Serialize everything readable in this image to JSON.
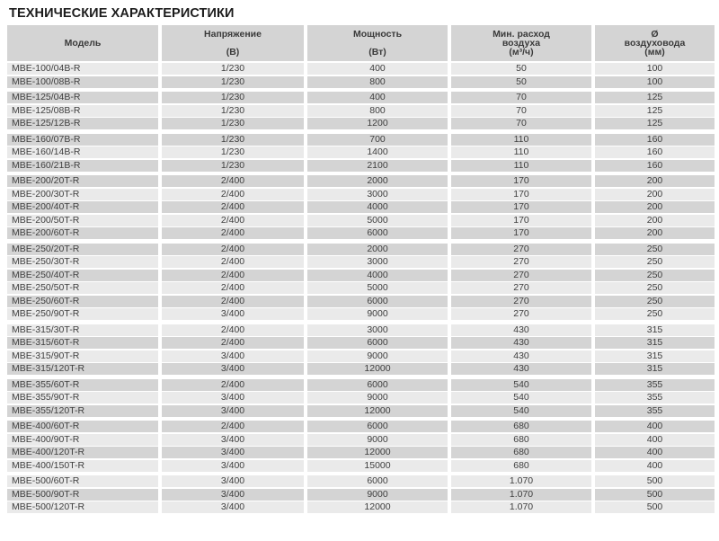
{
  "page_title": "ТЕХНИЧЕСКИЕ ХАРАКТЕРИСТИКИ",
  "colors": {
    "header_bg": "#d4d4d4",
    "row_dark_bg": "#d4d4d4",
    "row_light_bg": "#eaeaea",
    "text": "#3f3f3f",
    "title_text": "#1c1c1c"
  },
  "table": {
    "columns": [
      {
        "id": "model",
        "lines": [
          "Модель"
        ]
      },
      {
        "id": "voltage",
        "lines": [
          "Напряжение",
          "",
          "(В)"
        ]
      },
      {
        "id": "power",
        "lines": [
          "Мощность",
          "",
          "(Вт)"
        ]
      },
      {
        "id": "airflow",
        "lines": [
          "Мин. расход",
          "воздуха",
          "(м³/ч)"
        ]
      },
      {
        "id": "duct",
        "lines": [
          "Ø",
          "воздуховода",
          "(мм)"
        ]
      }
    ],
    "groups": [
      {
        "name": "MBE-100",
        "rows": [
          {
            "shade": "light",
            "model": "MBE-100/04B-R",
            "voltage": "1/230",
            "power": "400",
            "airflow": "50",
            "duct": "100"
          },
          {
            "shade": "dark",
            "model": "MBE-100/08B-R",
            "voltage": "1/230",
            "power": "800",
            "airflow": "50",
            "duct": "100"
          }
        ]
      },
      {
        "name": "MBE-125",
        "rows": [
          {
            "shade": "dark",
            "model": "MBE-125/04B-R",
            "voltage": "1/230",
            "power": "400",
            "airflow": "70",
            "duct": "125"
          },
          {
            "shade": "light",
            "model": "MBE-125/08B-R",
            "voltage": "1/230",
            "power": "800",
            "airflow": "70",
            "duct": "125"
          },
          {
            "shade": "dark",
            "model": "MBE-125/12B-R",
            "voltage": "1/230",
            "power": "1200",
            "airflow": "70",
            "duct": "125"
          }
        ]
      },
      {
        "name": "MBE-160",
        "rows": [
          {
            "shade": "dark",
            "model": "MBE-160/07B-R",
            "voltage": "1/230",
            "power": "700",
            "airflow": "110",
            "duct": "160"
          },
          {
            "shade": "light",
            "model": "MBE-160/14B-R",
            "voltage": "1/230",
            "power": "1400",
            "airflow": "110",
            "duct": "160"
          },
          {
            "shade": "dark",
            "model": "MBE-160/21B-R",
            "voltage": "1/230",
            "power": "2100",
            "airflow": "110",
            "duct": "160"
          }
        ]
      },
      {
        "name": "MBE-200",
        "rows": [
          {
            "shade": "dark",
            "model": "MBE-200/20T-R",
            "voltage": "2/400",
            "power": "2000",
            "airflow": "170",
            "duct": "200"
          },
          {
            "shade": "light",
            "model": "MBE-200/30T-R",
            "voltage": "2/400",
            "power": "3000",
            "airflow": "170",
            "duct": "200"
          },
          {
            "shade": "dark",
            "model": "MBE-200/40T-R",
            "voltage": "2/400",
            "power": "4000",
            "airflow": "170",
            "duct": "200"
          },
          {
            "shade": "light",
            "model": "MBE-200/50T-R",
            "voltage": "2/400",
            "power": "5000",
            "airflow": "170",
            "duct": "200"
          },
          {
            "shade": "dark",
            "model": "MBE-200/60T-R",
            "voltage": "2/400",
            "power": "6000",
            "airflow": "170",
            "duct": "200"
          }
        ]
      },
      {
        "name": "MBE-250",
        "rows": [
          {
            "shade": "dark",
            "model": "MBE-250/20T-R",
            "voltage": "2/400",
            "power": "2000",
            "airflow": "270",
            "duct": "250"
          },
          {
            "shade": "light",
            "model": "MBE-250/30T-R",
            "voltage": "2/400",
            "power": "3000",
            "airflow": "270",
            "duct": "250"
          },
          {
            "shade": "dark",
            "model": "MBE-250/40T-R",
            "voltage": "2/400",
            "power": "4000",
            "airflow": "270",
            "duct": "250"
          },
          {
            "shade": "light",
            "model": "MBE-250/50T-R",
            "voltage": "2/400",
            "power": "5000",
            "airflow": "270",
            "duct": "250"
          },
          {
            "shade": "dark",
            "model": "MBE-250/60T-R",
            "voltage": "2/400",
            "power": "6000",
            "airflow": "270",
            "duct": "250"
          },
          {
            "shade": "light",
            "model": "MBE-250/90T-R",
            "voltage": "3/400",
            "power": "9000",
            "airflow": "270",
            "duct": "250"
          }
        ]
      },
      {
        "name": "MBE-315",
        "rows": [
          {
            "shade": "light",
            "model": "MBE-315/30T-R",
            "voltage": "2/400",
            "power": "3000",
            "airflow": "430",
            "duct": "315"
          },
          {
            "shade": "dark",
            "model": "MBE-315/60T-R",
            "voltage": "2/400",
            "power": "6000",
            "airflow": "430",
            "duct": "315"
          },
          {
            "shade": "light",
            "model": "MBE-315/90T-R",
            "voltage": "3/400",
            "power": "9000",
            "airflow": "430",
            "duct": "315"
          },
          {
            "shade": "dark",
            "model": "MBE-315/120T-R",
            "voltage": "3/400",
            "power": "12000",
            "airflow": "430",
            "duct": "315"
          }
        ]
      },
      {
        "name": "MBE-355",
        "rows": [
          {
            "shade": "dark",
            "model": "MBE-355/60T-R",
            "voltage": "2/400",
            "power": "6000",
            "airflow": "540",
            "duct": "355"
          },
          {
            "shade": "light",
            "model": "MBE-355/90T-R",
            "voltage": "3/400",
            "power": "9000",
            "airflow": "540",
            "duct": "355"
          },
          {
            "shade": "dark",
            "model": "MBE-355/120T-R",
            "voltage": "3/400",
            "power": "12000",
            "airflow": "540",
            "duct": "355"
          }
        ]
      },
      {
        "name": "MBE-400",
        "rows": [
          {
            "shade": "dark",
            "model": "MBE-400/60T-R",
            "voltage": "2/400",
            "power": "6000",
            "airflow": "680",
            "duct": "400"
          },
          {
            "shade": "light",
            "model": "MBE-400/90T-R",
            "voltage": "3/400",
            "power": "9000",
            "airflow": "680",
            "duct": "400"
          },
          {
            "shade": "dark",
            "model": "MBE-400/120T-R",
            "voltage": "3/400",
            "power": "12000",
            "airflow": "680",
            "duct": "400"
          },
          {
            "shade": "light",
            "model": "MBE-400/150T-R",
            "voltage": "3/400",
            "power": "15000",
            "airflow": "680",
            "duct": "400"
          }
        ]
      },
      {
        "name": "MBE-500",
        "rows": [
          {
            "shade": "light",
            "model": "MBE-500/60T-R",
            "voltage": "3/400",
            "power": "6000",
            "airflow": "1.070",
            "duct": "500"
          },
          {
            "shade": "dark",
            "model": "MBE-500/90T-R",
            "voltage": "3/400",
            "power": "9000",
            "airflow": "1.070",
            "duct": "500"
          },
          {
            "shade": "light",
            "model": "MBE-500/120T-R",
            "voltage": "3/400",
            "power": "12000",
            "airflow": "1.070",
            "duct": "500"
          }
        ]
      }
    ]
  }
}
